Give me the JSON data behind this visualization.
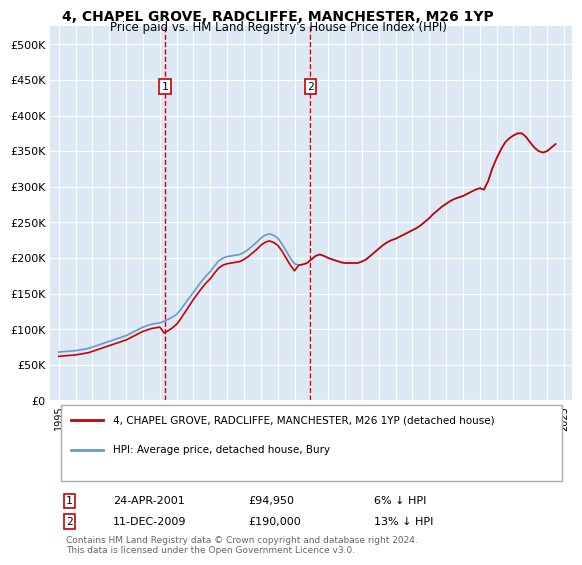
{
  "title": "4, CHAPEL GROVE, RADCLIFFE, MANCHESTER, M26 1YP",
  "subtitle": "Price paid vs. HM Land Registry's House Price Index (HPI)",
  "ylabel_ticks": [
    "£0",
    "£50K",
    "£100K",
    "£150K",
    "£200K",
    "£250K",
    "£300K",
    "£350K",
    "£400K",
    "£450K",
    "£500K"
  ],
  "ytick_values": [
    0,
    50000,
    100000,
    150000,
    200000,
    250000,
    300000,
    350000,
    400000,
    450000,
    500000
  ],
  "xlim": [
    1994.5,
    2025.5
  ],
  "ylim": [
    0,
    525000
  ],
  "background_color": "#dce9f5",
  "plot_bg_color": "#dce9f5",
  "line_color_red": "#cc0000",
  "line_color_blue": "#6699cc",
  "transaction1_year": 2001.31,
  "transaction2_year": 2009.94,
  "transaction1_price": 94950,
  "transaction2_price": 190000,
  "legend_label_red": "4, CHAPEL GROVE, RADCLIFFE, MANCHESTER, M26 1YP (detached house)",
  "legend_label_blue": "HPI: Average price, detached house, Bury",
  "marker1_label": "1",
  "marker2_label": "2",
  "marker1_date": "24-APR-2001",
  "marker1_price": "£94,950",
  "marker1_hpi": "6% ↓ HPI",
  "marker2_date": "11-DEC-2009",
  "marker2_price": "£190,000",
  "marker2_hpi": "13% ↓ HPI",
  "footer": "Contains HM Land Registry data © Crown copyright and database right 2024.\nThis data is licensed under the Open Government Licence v3.0.",
  "hpi_data": {
    "years": [
      1995,
      1995.25,
      1995.5,
      1995.75,
      1996,
      1996.25,
      1996.5,
      1996.75,
      1997,
      1997.25,
      1997.5,
      1997.75,
      1998,
      1998.25,
      1998.5,
      1998.75,
      1999,
      1999.25,
      1999.5,
      1999.75,
      2000,
      2000.25,
      2000.5,
      2000.75,
      2001,
      2001.25,
      2001.5,
      2001.75,
      2002,
      2002.25,
      2002.5,
      2002.75,
      2003,
      2003.25,
      2003.5,
      2003.75,
      2004,
      2004.25,
      2004.5,
      2004.75,
      2005,
      2005.25,
      2005.5,
      2005.75,
      2006,
      2006.25,
      2006.5,
      2006.75,
      2007,
      2007.25,
      2007.5,
      2007.75,
      2008,
      2008.25,
      2008.5,
      2008.75,
      2009,
      2009.25,
      2009.5,
      2009.75,
      2010,
      2010.25,
      2010.5,
      2010.75,
      2011,
      2011.25,
      2011.5,
      2011.75,
      2012,
      2012.25,
      2012.5,
      2012.75,
      2013,
      2013.25,
      2013.5,
      2013.75,
      2014,
      2014.25,
      2014.5,
      2014.75,
      2015,
      2015.25,
      2015.5,
      2015.75,
      2016,
      2016.25,
      2016.5,
      2016.75,
      2017,
      2017.25,
      2017.5,
      2017.75,
      2018,
      2018.25,
      2018.5,
      2018.75,
      2019,
      2019.25,
      2019.5,
      2019.75,
      2020,
      2020.25,
      2020.5,
      2020.75,
      2021,
      2021.25,
      2021.5,
      2021.75,
      2022,
      2022.25,
      2022.5,
      2022.75,
      2023,
      2023.25,
      2023.5,
      2023.75,
      2024,
      2024.25,
      2024.5
    ],
    "values": [
      68000,
      68500,
      69000,
      69500,
      70000,
      71000,
      72000,
      73000,
      75000,
      77000,
      79000,
      81000,
      83000,
      85000,
      87000,
      89000,
      91000,
      94000,
      97000,
      100000,
      103000,
      105000,
      107000,
      108000,
      109000,
      111000,
      114000,
      117000,
      121000,
      128000,
      136000,
      144000,
      152000,
      160000,
      168000,
      175000,
      181000,
      189000,
      196000,
      200000,
      202000,
      203000,
      204000,
      205000,
      208000,
      212000,
      217000,
      222000,
      228000,
      232000,
      234000,
      232000,
      228000,
      220000,
      210000,
      200000,
      192000,
      190000,
      191000,
      193000,
      198000,
      203000,
      205000,
      203000,
      200000,
      198000,
      196000,
      194000,
      193000,
      193000,
      193000,
      193000,
      195000,
      198000,
      203000,
      208000,
      213000,
      218000,
      222000,
      225000,
      227000,
      230000,
      233000,
      236000,
      239000,
      242000,
      246000,
      251000,
      256000,
      262000,
      267000,
      272000,
      276000,
      280000,
      283000,
      285000,
      287000,
      290000,
      293000,
      296000,
      298000,
      296000,
      308000,
      326000,
      340000,
      352000,
      362000,
      368000,
      372000,
      375000,
      375000,
      370000,
      362000,
      355000,
      350000,
      348000,
      350000,
      355000,
      360000
    ]
  },
  "property_data": {
    "years": [
      1995,
      1995.25,
      1995.5,
      1995.75,
      1996,
      1996.25,
      1996.5,
      1996.75,
      1997,
      1997.25,
      1997.5,
      1997.75,
      1998,
      1998.25,
      1998.5,
      1998.75,
      1999,
      1999.25,
      1999.5,
      1999.75,
      2000,
      2000.25,
      2000.5,
      2000.75,
      2001,
      2001.25,
      2001.5,
      2001.75,
      2002,
      2002.25,
      2002.5,
      2002.75,
      2003,
      2003.25,
      2003.5,
      2003.75,
      2004,
      2004.25,
      2004.5,
      2004.75,
      2005,
      2005.25,
      2005.5,
      2005.75,
      2006,
      2006.25,
      2006.5,
      2006.75,
      2007,
      2007.25,
      2007.5,
      2007.75,
      2008,
      2008.25,
      2008.5,
      2008.75,
      2009,
      2009.25,
      2009.5,
      2009.75,
      2010,
      2010.25,
      2010.5,
      2010.75,
      2011,
      2011.25,
      2011.5,
      2011.75,
      2012,
      2012.25,
      2012.5,
      2012.75,
      2013,
      2013.25,
      2013.5,
      2013.75,
      2014,
      2014.25,
      2014.5,
      2014.75,
      2015,
      2015.25,
      2015.5,
      2015.75,
      2016,
      2016.25,
      2016.5,
      2016.75,
      2017,
      2017.25,
      2017.5,
      2017.75,
      2018,
      2018.25,
      2018.5,
      2018.75,
      2019,
      2019.25,
      2019.5,
      2019.75,
      2020,
      2020.25,
      2020.5,
      2020.75,
      2021,
      2021.25,
      2021.5,
      2021.75,
      2022,
      2022.25,
      2022.5,
      2022.75,
      2023,
      2023.25,
      2023.5,
      2023.75,
      2024,
      2024.25,
      2024.5
    ],
    "values": [
      62000,
      62500,
      63000,
      63500,
      64000,
      65000,
      66000,
      67000,
      69000,
      71000,
      73000,
      75000,
      77000,
      79000,
      81000,
      83000,
      85000,
      88000,
      91000,
      94000,
      97000,
      99000,
      101000,
      102000,
      103000,
      94950,
      98000,
      102000,
      107000,
      115000,
      124000,
      133000,
      142000,
      150000,
      158000,
      165000,
      171000,
      179000,
      186000,
      190000,
      192000,
      193000,
      194000,
      195000,
      198000,
      202000,
      207000,
      212000,
      218000,
      222000,
      224000,
      222000,
      218000,
      210000,
      200000,
      190000,
      182000,
      190000,
      191000,
      193000,
      198000,
      203000,
      205000,
      203000,
      200000,
      198000,
      196000,
      194000,
      193000,
      193000,
      193000,
      193000,
      195000,
      198000,
      203000,
      208000,
      213000,
      218000,
      222000,
      225000,
      227000,
      230000,
      233000,
      236000,
      239000,
      242000,
      246000,
      251000,
      256000,
      262000,
      267000,
      272000,
      276000,
      280000,
      283000,
      285000,
      287000,
      290000,
      293000,
      296000,
      298000,
      296000,
      308000,
      326000,
      340000,
      352000,
      362000,
      368000,
      372000,
      375000,
      375000,
      370000,
      362000,
      355000,
      350000,
      348000,
      350000,
      355000,
      360000
    ]
  }
}
